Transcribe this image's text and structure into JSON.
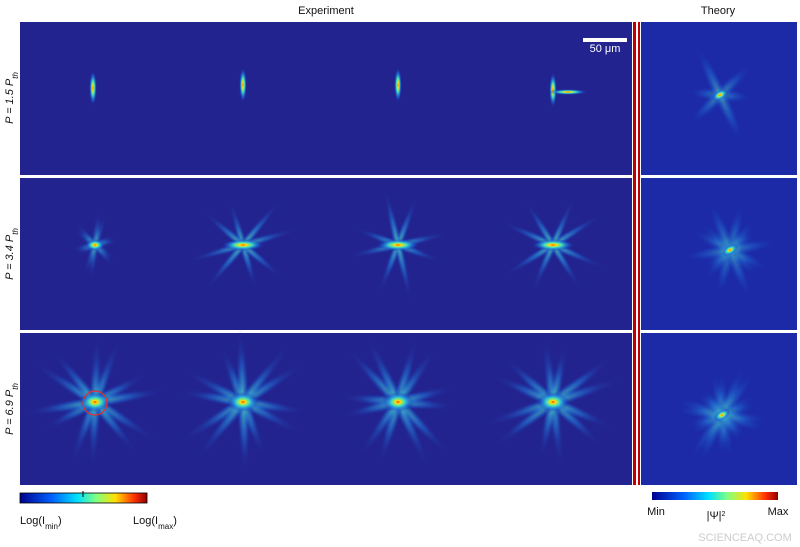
{
  "header": {
    "experiment": "Experiment",
    "theory": "Theory"
  },
  "scale_bar": "50 μm",
  "rows": [
    {
      "text": "P = 1.5 P",
      "sub": "th"
    },
    {
      "text": "P = 3.4 P",
      "sub": "th"
    },
    {
      "text": "P = 6.9 P",
      "sub": "th"
    }
  ],
  "experiment_colorbar": {
    "min": {
      "before": "Log(I",
      "sub": "min",
      "after": ")"
    },
    "max": {
      "before": "Log(I",
      "sub": "max",
      "after": ")"
    }
  },
  "theory_colorbar": {
    "min": "Min",
    "label": {
      "text": "|Ψ|",
      "sup": "2"
    },
    "max": "Max"
  },
  "watermark": "SCIENCEAQ.COM"
}
